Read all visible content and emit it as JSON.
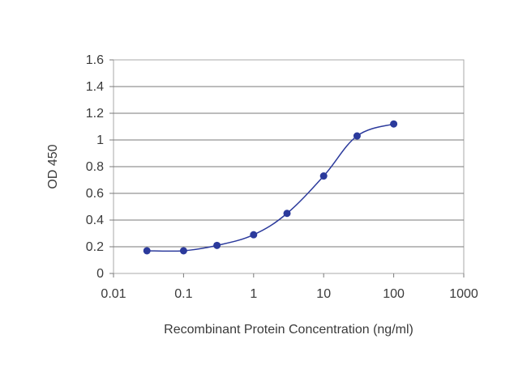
{
  "chart_data": {
    "type": "line",
    "title": "",
    "xlabel": "Recombinant Protein Concentration (ng/ml)",
    "ylabel": "OD 450",
    "x_scale": "log",
    "xlim": [
      0.01,
      1000
    ],
    "ylim": [
      0,
      1.6
    ],
    "x_ticks": [
      0.01,
      0.1,
      1,
      10,
      100,
      1000
    ],
    "x_tick_labels": [
      "0.01",
      "0.1",
      "1",
      "10",
      "100",
      "1000"
    ],
    "y_ticks": [
      0,
      0.2,
      0.4,
      0.6,
      0.8,
      1,
      1.2,
      1.4,
      1.6
    ],
    "y_tick_labels": [
      "0",
      "0.2",
      "0.4",
      "0.6",
      "0.8",
      "1",
      "1.2",
      "1.4",
      "1.6"
    ],
    "grid": "horizontal",
    "legend": "none",
    "series": [
      {
        "color": "#2b3a9c",
        "x": [
          0.03,
          0.1,
          0.3,
          1,
          3,
          10,
          30,
          100
        ],
        "y": [
          0.17,
          0.17,
          0.21,
          0.29,
          0.45,
          0.73,
          1.03,
          1.12
        ]
      }
    ]
  }
}
